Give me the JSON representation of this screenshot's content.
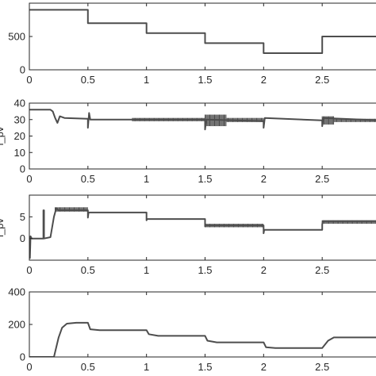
{
  "chart_data": [
    {
      "type": "line",
      "title": "",
      "xlabel": "",
      "ylabel": "",
      "xlim": [
        0,
        3.0
      ],
      "ylim": [
        0,
        1000
      ],
      "xticks": [
        0,
        0.5,
        1,
        1.5,
        2,
        2.5
      ],
      "xtick_labels": [
        "0",
        "0.5",
        "1",
        "1.5",
        "2",
        "2.5"
      ],
      "yticks": [
        0,
        500
      ],
      "ytick_labels": [
        "0",
        "500"
      ],
      "grid": false,
      "series": [
        {
          "x": [
            0,
            0.5,
            0.5,
            1.0,
            1.0,
            1.5,
            1.5,
            2.0,
            2.0,
            2.5,
            2.5,
            3.0
          ],
          "y": [
            900,
            900,
            700,
            700,
            550,
            550,
            400,
            400,
            250,
            250,
            500,
            500
          ]
        }
      ],
      "oscillations": []
    },
    {
      "type": "line",
      "title": "",
      "xlabel": "",
      "ylabel": "i_pv",
      "xlim": [
        0,
        3.0
      ],
      "ylim": [
        0,
        40
      ],
      "xticks": [
        0,
        0.5,
        1,
        1.5,
        2,
        2.5
      ],
      "xtick_labels": [
        "0",
        "0.5",
        "1",
        "1.5",
        "2",
        "2.5"
      ],
      "yticks": [
        0,
        10,
        20,
        30,
        40
      ],
      "ytick_labels": [
        "0",
        "10",
        "20",
        "30",
        "40"
      ],
      "grid": false,
      "series": [
        {
          "x": [
            0,
            0.18,
            0.2,
            0.22,
            0.24,
            0.26,
            0.3,
            0.5,
            0.5,
            0.51,
            0.52,
            1.0,
            1.5,
            1.5,
            1.51,
            2.0,
            2.0,
            2.01,
            2.5,
            2.5,
            2.51,
            3.0
          ],
          "y": [
            36,
            36,
            35,
            31,
            28,
            32,
            31,
            30.5,
            25,
            34,
            30,
            30,
            30,
            24,
            30,
            29,
            25,
            31,
            29.5,
            26,
            31,
            29.5
          ]
        }
      ],
      "oscillations": [
        {
          "x0": 0.88,
          "x1": 1.5,
          "ymin": 29,
          "ymax": 31
        },
        {
          "x0": 1.5,
          "x1": 1.68,
          "ymin": 26,
          "ymax": 33
        },
        {
          "x0": 1.68,
          "x1": 2.0,
          "ymin": 28.5,
          "ymax": 31
        },
        {
          "x0": 2.5,
          "x1": 2.6,
          "ymin": 27,
          "ymax": 32
        },
        {
          "x0": 2.6,
          "x1": 3.0,
          "ymin": 28.5,
          "ymax": 30.5
        }
      ]
    },
    {
      "type": "line",
      "title": "",
      "xlabel": "",
      "ylabel": "i_pv",
      "xlim": [
        0,
        3.0
      ],
      "ylim": [
        -5,
        10
      ],
      "xticks": [
        0,
        0.5,
        1,
        1.5,
        2,
        2.5
      ],
      "xtick_labels": [
        "0",
        "0.5",
        "1",
        "1.5",
        "2",
        "2.5"
      ],
      "yticks": [
        0,
        5
      ],
      "ytick_labels": [
        "0",
        "5"
      ],
      "grid": false,
      "series": [
        {
          "x": [
            0,
            0.005,
            0.01,
            0.02,
            0.12,
            0.12,
            0.125,
            0.125,
            0.18,
            0.21,
            0.23,
            0.25,
            0.3,
            0.5,
            0.5,
            0.505,
            1.0,
            1.0,
            1.005,
            1.5,
            1.5,
            1.505,
            2.0,
            2.0,
            2.005,
            2.5,
            2.5,
            2.505,
            3.0
          ],
          "y": [
            0,
            -4.5,
            0.5,
            0,
            0,
            6.5,
            6.5,
            0,
            0.3,
            5,
            7,
            6.5,
            6.5,
            6.5,
            4.8,
            6,
            6,
            4.2,
            4.5,
            4.5,
            2.8,
            3,
            3,
            1.2,
            2,
            2,
            3.2,
            4,
            4
          ]
        }
      ],
      "oscillations": [
        {
          "x0": 0.22,
          "x1": 0.5,
          "ymin": 6.2,
          "ymax": 7.2
        },
        {
          "x0": 1.5,
          "x1": 2.0,
          "ymin": 2.6,
          "ymax": 3.4
        },
        {
          "x0": 2.5,
          "x1": 3.0,
          "ymin": 3.4,
          "ymax": 4.2
        }
      ]
    },
    {
      "type": "line",
      "title": "",
      "xlabel": "",
      "ylabel": "",
      "xlim": [
        0,
        3.0
      ],
      "ylim": [
        0,
        400
      ],
      "xticks": [
        0,
        0.5,
        1,
        1.5,
        2,
        2.5
      ],
      "xtick_labels": [
        "0",
        "0.5",
        "1",
        "1.5",
        "2",
        "2.5"
      ],
      "yticks": [
        0,
        200,
        400
      ],
      "ytick_labels": [
        "0",
        "200",
        "400"
      ],
      "grid": false,
      "series": [
        {
          "x": [
            0,
            0.21,
            0.25,
            0.28,
            0.32,
            0.4,
            0.5,
            0.52,
            0.6,
            1.0,
            1.02,
            1.1,
            1.5,
            1.52,
            1.6,
            2.0,
            2.02,
            2.1,
            2.5,
            2.55,
            2.6,
            3.0
          ],
          "y": [
            0,
            0,
            120,
            180,
            205,
            210,
            210,
            170,
            165,
            165,
            140,
            130,
            130,
            100,
            90,
            90,
            60,
            55,
            55,
            100,
            120,
            120
          ]
        }
      ],
      "oscillations": []
    }
  ]
}
